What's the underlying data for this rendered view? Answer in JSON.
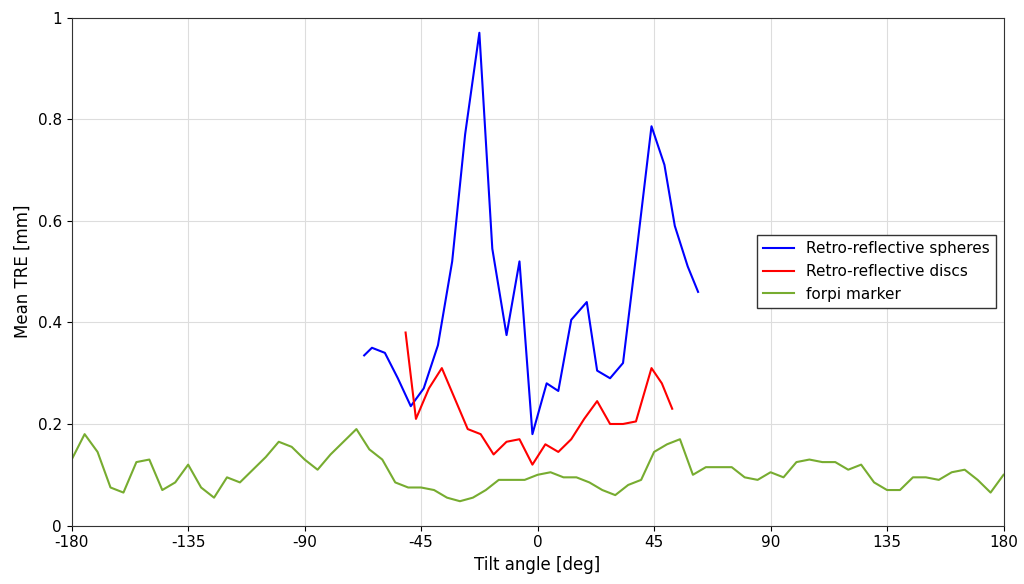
{
  "chart_data": {
    "type": "line",
    "x_label": "Tilt angle [deg]",
    "y_label": "Mean TRE [mm]",
    "xlim": [
      -180,
      180
    ],
    "xticks": [
      -180,
      -135,
      -90,
      -45,
      0,
      45,
      90,
      135,
      180
    ],
    "ylim": [
      0,
      1
    ],
    "yticks": [
      0,
      0.2,
      0.4,
      0.6,
      0.8,
      1
    ],
    "grid": true,
    "legend": "center right",
    "series": [
      {
        "name": "Retro-reflective spheres",
        "color": "#0000ff",
        "x": [
          -67,
          -64,
          -59,
          -54,
          -49,
          -44,
          -38.5,
          -33,
          -28,
          -22.5,
          -17.5,
          -12,
          -7,
          -2,
          3.5,
          8,
          13,
          19,
          23,
          28,
          33,
          38.5,
          44,
          49,
          53,
          58,
          62
        ],
        "values": [
          0.335,
          0.35,
          0.34,
          0.29,
          0.235,
          0.27,
          0.355,
          0.52,
          0.77,
          0.97,
          0.545,
          0.375,
          0.52,
          0.18,
          0.28,
          0.265,
          0.405,
          0.44,
          0.305,
          0.29,
          0.32,
          0.55,
          0.786,
          0.71,
          0.59,
          0.51,
          0.46
        ]
      },
      {
        "name": "Retro-reflective discs",
        "color": "#ff0000",
        "x": [
          -51,
          -47,
          -42,
          -37,
          -32,
          -27,
          -22,
          -17,
          -12,
          -7,
          -2,
          3,
          8,
          13,
          18,
          23,
          28,
          33,
          38,
          44,
          48,
          52
        ],
        "values": [
          0.38,
          0.21,
          0.27,
          0.31,
          0.25,
          0.19,
          0.18,
          0.14,
          0.165,
          0.17,
          0.12,
          0.16,
          0.145,
          0.17,
          0.21,
          0.245,
          0.2,
          0.2,
          0.205,
          0.31,
          0.28,
          0.23
        ]
      },
      {
        "name": "forpi marker",
        "color": "#77ac30",
        "x": [
          -180,
          -175,
          -170,
          -165,
          -160,
          -155,
          -150,
          -145,
          -140,
          -135,
          -130,
          -125,
          -120,
          -115,
          -110,
          -105,
          -100,
          -95,
          -90,
          -85,
          -80,
          -75,
          -70,
          -65,
          -60,
          -55,
          -50,
          -45,
          -40,
          -35,
          -30,
          -25,
          -20,
          -15,
          -10,
          -5,
          0,
          5,
          10,
          15,
          20,
          25,
          30,
          35,
          40,
          45,
          50,
          55,
          60,
          65,
          70,
          75,
          80,
          85,
          90,
          95,
          100,
          105,
          110,
          115,
          120,
          125,
          130,
          135,
          140,
          145,
          150,
          155,
          160,
          165,
          170,
          175,
          180
        ],
        "values": [
          0.13,
          0.18,
          0.145,
          0.075,
          0.065,
          0.125,
          0.13,
          0.07,
          0.085,
          0.12,
          0.075,
          0.055,
          0.095,
          0.085,
          0.11,
          0.135,
          0.165,
          0.155,
          0.13,
          0.11,
          0.14,
          0.165,
          0.19,
          0.15,
          0.13,
          0.085,
          0.075,
          0.075,
          0.07,
          0.055,
          0.048,
          0.055,
          0.07,
          0.09,
          0.09,
          0.09,
          0.1,
          0.105,
          0.095,
          0.095,
          0.085,
          0.07,
          0.06,
          0.08,
          0.09,
          0.145,
          0.16,
          0.17,
          0.1,
          0.115,
          0.115,
          0.115,
          0.095,
          0.09,
          0.105,
          0.095,
          0.125,
          0.13,
          0.125,
          0.125,
          0.11,
          0.12,
          0.085,
          0.07,
          0.07,
          0.095,
          0.095,
          0.09,
          0.105,
          0.11,
          0.09,
          0.065,
          0.1
        ]
      }
    ]
  }
}
